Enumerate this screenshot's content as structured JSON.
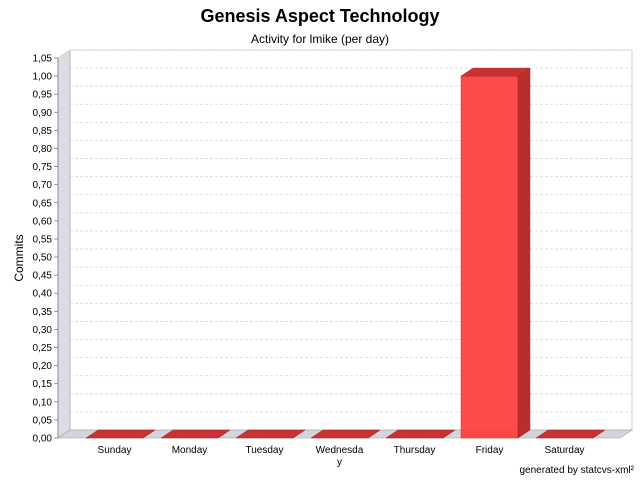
{
  "header": {
    "title": "Genesis Aspect Technology",
    "subtitle": "Activity for lmike (per day)"
  },
  "footer": {
    "credit": "generated by statcvs-xml²"
  },
  "colors": {
    "bar_front": "#ff4040",
    "bar_top": "#c83232",
    "bar_side": "#b82e2e",
    "wall": "#dcdce4",
    "floor": "#d4d4dc",
    "grid": "#d8d8d8"
  },
  "chart_data": {
    "type": "bar",
    "title": "Genesis Aspect Technology",
    "subtitle": "Activity for lmike (per day)",
    "xlabel": "",
    "ylabel": "Commits",
    "categories": [
      "Sunday",
      "Monday",
      "Tuesday",
      "Wednesday",
      "Thursday",
      "Friday",
      "Saturday"
    ],
    "category_labels": [
      [
        "Sunday"
      ],
      [
        "Monday"
      ],
      [
        "Tuesday"
      ],
      [
        "Wednesda",
        "y"
      ],
      [
        "Thursday"
      ],
      [
        "Friday"
      ],
      [
        "Saturday"
      ]
    ],
    "values": [
      0,
      0,
      0,
      0,
      0,
      1,
      0
    ],
    "ylim": [
      0,
      1.05
    ],
    "ytick_step": 0.05,
    "ytick_labels": [
      "0,00",
      "0,05",
      "0,10",
      "0,15",
      "0,20",
      "0,25",
      "0,30",
      "0,35",
      "0,40",
      "0,45",
      "0,50",
      "0,55",
      "0,60",
      "0,65",
      "0,70",
      "0,75",
      "0,80",
      "0,85",
      "0,90",
      "0,95",
      "1,00",
      "1,05"
    ],
    "grid": true,
    "legend": "none",
    "style": "3d"
  }
}
